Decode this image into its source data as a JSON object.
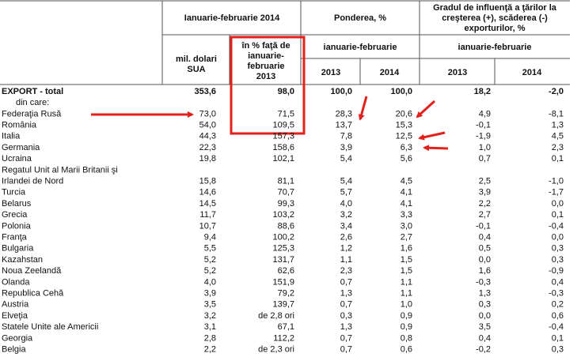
{
  "header": {
    "period_2014": "Ianuarie-februarie 2014",
    "share": "Ponderea, %",
    "influence": [
      "Gradul de influenţă a ţărilor la",
      "creşterea (+), scăderea (-)",
      "exporturilor, %"
    ],
    "usd": [
      "mil. dolari",
      "SUA"
    ],
    "percent": [
      "în % faţă de",
      "ianuarie-",
      "februarie",
      "2013"
    ],
    "share_period": "ianuarie-februarie",
    "influence_period": "ianuarie-februarie",
    "years": [
      "2013",
      "2014",
      "2013",
      "2014"
    ]
  },
  "table": {
    "rows": [
      [
        "EXPORT - total",
        "353,6",
        "98,0",
        "100,0",
        "100,0",
        "18,2",
        "-2,0"
      ],
      [
        "din care:"
      ],
      [
        "Federaţia Rusă",
        "73,0",
        "71,5",
        "28,3",
        "20,6",
        "4,9",
        "-8,1"
      ],
      [
        "România",
        "54,0",
        "109,5",
        "13,7",
        "15,3",
        "-0,1",
        "1,3"
      ],
      [
        "Italia",
        "44,3",
        "157,3",
        "7,8",
        "12,5",
        "-1,9",
        "4,5"
      ],
      [
        "Germania",
        "22,3",
        "158,6",
        "3,9",
        "6,3",
        "1,0",
        "2,3"
      ],
      [
        "Ucraina",
        "19,8",
        "102,1",
        "5,4",
        "5,6",
        "0,7",
        "0,1"
      ],
      [
        "Regatul Unit al Marii Britanii şi"
      ],
      [
        "Irlandei de Nord",
        "15,8",
        "81,1",
        "5,4",
        "4,5",
        "2,5",
        "-1,0"
      ],
      [
        "Turcia",
        "14,6",
        "70,7",
        "5,7",
        "4,1",
        "3,9",
        "-1,7"
      ],
      [
        "Belarus",
        "14,5",
        "99,3",
        "4,0",
        "4,1",
        "2,2",
        "0,0"
      ],
      [
        "Grecia",
        "11,7",
        "103,2",
        "3,2",
        "3,3",
        "2,7",
        "0,1"
      ],
      [
        "Polonia",
        "10,7",
        "88,6",
        "3,4",
        "3,0",
        "-0,1",
        "-0,4"
      ],
      [
        "Franţa",
        "9,4",
        "100,2",
        "2,6",
        "2,7",
        "0,4",
        "0,0"
      ],
      [
        "Bulgaria",
        "5,5",
        "125,3",
        "1,2",
        "1,6",
        "0,5",
        "0,3"
      ],
      [
        "Kazahstan",
        "5,2",
        "131,7",
        "1,1",
        "1,5",
        "0,0",
        "0,3"
      ],
      [
        "Noua Zeelandă",
        "5,2",
        "62,6",
        "2,3",
        "1,5",
        "1,6",
        "-0,9"
      ],
      [
        "Olanda",
        "4,0",
        "151,9",
        "0,7",
        "1,1",
        "-0,3",
        "0,4"
      ],
      [
        "Republica Cehă",
        "3,9",
        "79,2",
        "1,3",
        "1,1",
        "1,3",
        "-0,3"
      ],
      [
        "Austria",
        "3,5",
        "139,7",
        "0,7",
        "1,0",
        "0,3",
        "0,2"
      ],
      [
        "Elveţia",
        "3,2",
        "de 2,8 ori",
        "0,3",
        "0,9",
        "0,0",
        "0,6"
      ],
      [
        "Statele Unite ale Americii",
        "3,1",
        "67,1",
        "1,3",
        "0,9",
        "3,5",
        "-0,4"
      ],
      [
        "Georgia",
        "2,8",
        "112,2",
        "0,7",
        "0,8",
        "0,4",
        "0,1"
      ],
      [
        "Belgia",
        "2,2",
        "de 2,3 ori",
        "0,7",
        "0,6",
        "-0,2",
        "0,3"
      ]
    ]
  }
}
